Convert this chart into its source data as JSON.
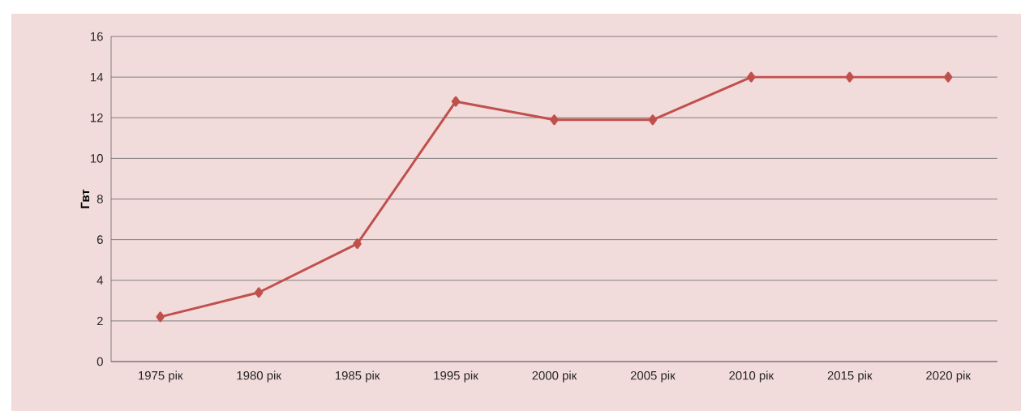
{
  "chart_data": {
    "type": "line",
    "ylabel": "Гвт",
    "categories": [
      "1975 рік",
      "1980 рік",
      "1985 рік",
      "1995 рік",
      "2000 рік",
      "2005 рік",
      "2010 рік",
      "2015 рік",
      "2020 рік"
    ],
    "series": [
      {
        "color": "#c0504d",
        "values": [
          2.2,
          3.4,
          5.8,
          12.8,
          11.9,
          11.9,
          14,
          14,
          14
        ]
      }
    ],
    "ylim": [
      0,
      16
    ],
    "yticks": [
      0,
      2,
      4,
      6,
      8,
      10,
      12,
      14,
      16
    ],
    "grid": "y",
    "marker": "diamond",
    "line_style": "solid"
  }
}
